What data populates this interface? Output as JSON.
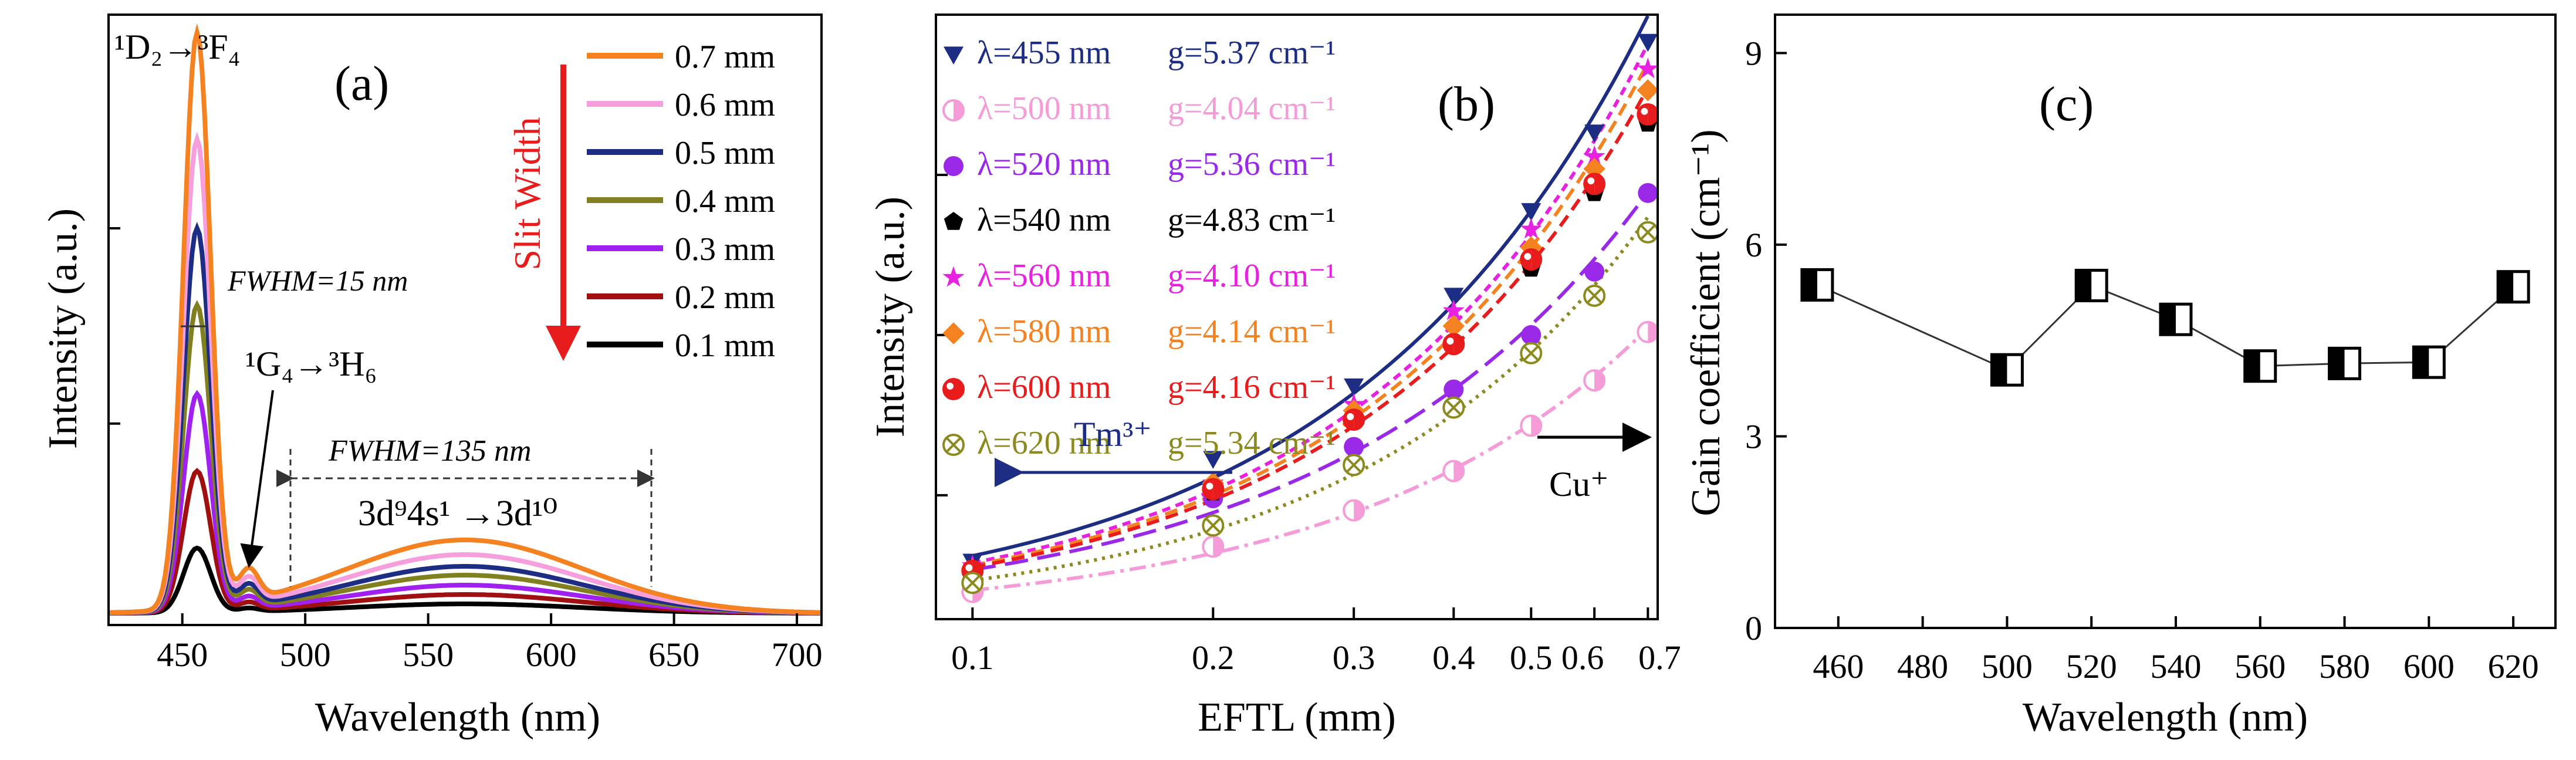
{
  "chart_data": [
    {
      "panel": "(a)",
      "type": "line",
      "xlabel": "Wavelength (nm)",
      "ylabel": "Intensity (a.u.)",
      "xlim": [
        420,
        710
      ],
      "ylim": [
        0,
        1
      ],
      "xticks": [
        "450",
        "500",
        "550",
        "600",
        "650",
        "700"
      ],
      "xtick_values": [
        450,
        500,
        550,
        600,
        650,
        700
      ],
      "legend_title": "Slit Width",
      "annotations": {
        "peak_label": "¹D₂→³F₄",
        "secondary_label": "¹G₄→³H₆",
        "fwhm_narrow": "FWHM=15 nm",
        "fwhm_broad": "FWHM=135 nm",
        "band_label": "3d⁹4s¹ →3d¹⁰"
      },
      "series": [
        {
          "name": "0.7 mm",
          "color": "#f58220",
          "peak": 0.98,
          "broad": 0.125
        },
        {
          "name": "0.6 mm",
          "color": "#f79fdc",
          "peak": 0.8,
          "broad": 0.1
        },
        {
          "name": "0.5 mm",
          "color": "#1e2d84",
          "peak": 0.65,
          "broad": 0.08
        },
        {
          "name": "0.4 mm",
          "color": "#808020",
          "peak": 0.52,
          "broad": 0.065
        },
        {
          "name": "0.3 mm",
          "color": "#a020f0",
          "peak": 0.37,
          "broad": 0.048
        },
        {
          "name": "0.2 mm",
          "color": "#a01010",
          "peak": 0.24,
          "broad": 0.032
        },
        {
          "name": "0.1 mm",
          "color": "#000000",
          "peak": 0.11,
          "broad": 0.016
        }
      ]
    },
    {
      "panel": "(b)",
      "type": "scatter",
      "xlabel": "EFTL (mm)",
      "ylabel": "Intensity (a.u.)",
      "xscale": "log",
      "xlim": [
        0.09,
        0.72
      ],
      "ylim": [
        0,
        1
      ],
      "xticks": [
        "0.1",
        "0.2",
        "0.3",
        "0.4",
        "0.5",
        "0.6",
        "0.7"
      ],
      "xtick_values": [
        0.1,
        0.2,
        0.3,
        0.4,
        0.5,
        0.6,
        0.7
      ],
      "x": [
        0.1,
        0.2,
        0.3,
        0.4,
        0.5,
        0.6,
        0.7
      ],
      "annotations": {
        "left_arrow": "Tm³⁺",
        "right_arrow": "Cu⁺"
      },
      "series": [
        {
          "name": "λ=455 nm",
          "gain": "g=5.37 cm⁻¹",
          "color": "#1e2d84",
          "marker": "tri-down",
          "dash": "solid",
          "values": [
            0.095,
            0.265,
            0.385,
            0.535,
            0.675,
            0.805,
            0.955
          ]
        },
        {
          "name": "λ=500 nm",
          "gain": "g=4.04 cm⁻¹",
          "color": "#f49bd8",
          "marker": "half-circle",
          "dash": "dashdot",
          "values": [
            0.045,
            0.12,
            0.18,
            0.245,
            0.32,
            0.395,
            0.475
          ]
        },
        {
          "name": "λ=520 nm",
          "gain": "g=5.36 cm⁻¹",
          "color": "#9a28e8",
          "marker": "circle",
          "dash": "longdash",
          "values": [
            0.075,
            0.2,
            0.285,
            0.38,
            0.47,
            0.575,
            0.705
          ]
        },
        {
          "name": "λ=540 nm",
          "gain": "g=4.83 cm⁻¹",
          "color": "#000000",
          "marker": "pentagon",
          "dash": "none",
          "values": [
            0.085,
            0.21,
            0.34,
            0.46,
            0.58,
            0.705,
            0.82
          ]
        },
        {
          "name": "λ=560 nm",
          "gain": "g=4.10 cm⁻¹",
          "color": "#e820e0",
          "marker": "star",
          "dash": "short",
          "values": [
            0.088,
            0.225,
            0.355,
            0.51,
            0.645,
            0.765,
            0.91
          ]
        },
        {
          "name": "λ=580 nm",
          "gain": "g=4.14 cm⁻¹",
          "color": "#f58220",
          "marker": "diamond",
          "dash": "dash",
          "values": [
            0.082,
            0.225,
            0.345,
            0.485,
            0.615,
            0.745,
            0.875
          ]
        },
        {
          "name": "λ=600 nm",
          "gain": "g=4.16 cm⁻¹",
          "color": "#e81c1c",
          "marker": "half-circle-red",
          "dash": "dash",
          "values": [
            0.08,
            0.215,
            0.33,
            0.455,
            0.595,
            0.72,
            0.835
          ]
        },
        {
          "name": "λ=620 nm",
          "gain": "g=5.34 cm⁻¹",
          "color": "#8a8a1e",
          "marker": "crossed-circle",
          "dash": "dotted",
          "values": [
            0.06,
            0.155,
            0.255,
            0.35,
            0.44,
            0.535,
            0.64
          ]
        }
      ]
    },
    {
      "panel": "(c)",
      "type": "line",
      "xlabel": "Wavelength (nm)",
      "ylabel": "Gain coefficient (cm⁻¹)",
      "xlim": [
        445,
        630
      ],
      "ylim": [
        0,
        9.6
      ],
      "xticks": [
        "460",
        "480",
        "500",
        "520",
        "540",
        "560",
        "580",
        "600",
        "620"
      ],
      "xtick_values": [
        460,
        480,
        500,
        520,
        540,
        560,
        580,
        600,
        620
      ],
      "yticks": [
        "0",
        "3",
        "6",
        "9"
      ],
      "ytick_values": [
        0,
        3,
        6,
        9
      ],
      "x": [
        455,
        500,
        520,
        540,
        560,
        580,
        600,
        620
      ],
      "values": [
        5.37,
        4.04,
        5.36,
        4.83,
        4.1,
        4.14,
        4.16,
        5.34
      ]
    }
  ]
}
